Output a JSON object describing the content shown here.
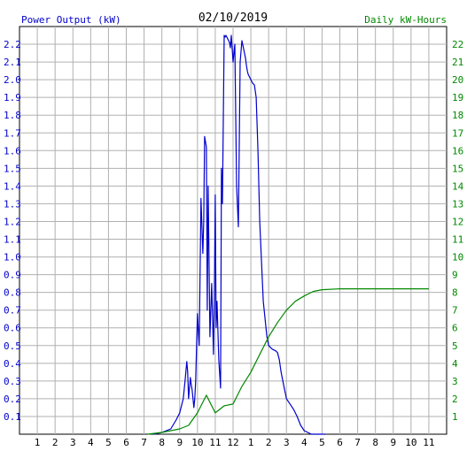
{
  "chart_data": {
    "type": "line",
    "title": "02/10/2019",
    "ylabel_left": "Power Output (kW)",
    "ylabel_right": "Daily kW-Hours",
    "colors": {
      "left_label": "#0000cc",
      "right_label": "#008800",
      "title": "#000000",
      "power_line": "#0000cc",
      "energy_line": "#008800",
      "grid": "#b0b0b0",
      "plot_bg": "#ffffff",
      "axis": "#000000"
    },
    "ylim_left": [
      0,
      2.3
    ],
    "ylim_right": [
      0,
      23
    ],
    "xlim": [
      0,
      24
    ],
    "y_ticks_left": [
      "0.1",
      "0.2",
      "0.3",
      "0.4",
      "0.5",
      "0.6",
      "0.7",
      "0.8",
      "0.9",
      "1.0",
      "1.1",
      "1.2",
      "1.3",
      "1.4",
      "1.5",
      "1.6",
      "1.7",
      "1.8",
      "1.9",
      "2.0",
      "2.1",
      "2.2"
    ],
    "y_ticks_right": [
      "1",
      "2",
      "3",
      "4",
      "5",
      "6",
      "7",
      "8",
      "9",
      "10",
      "11",
      "12",
      "13",
      "14",
      "15",
      "16",
      "17",
      "18",
      "19",
      "20",
      "21",
      "22"
    ],
    "x_ticks": [
      "1",
      "2",
      "3",
      "4",
      "5",
      "6",
      "7",
      "8",
      "9",
      "10",
      "11",
      "12",
      "1",
      "2",
      "3",
      "4",
      "5",
      "6",
      "7",
      "8",
      "9",
      "10",
      "11"
    ],
    "grid": true,
    "series": [
      {
        "id": "power",
        "x": [
          7.5,
          8.0,
          8.5,
          8.8,
          9.0,
          9.2,
          9.3,
          9.4,
          9.45,
          9.5,
          9.6,
          9.65,
          9.7,
          9.8,
          9.85,
          9.9,
          10.0,
          10.1,
          10.2,
          10.3,
          10.35,
          10.4,
          10.5,
          10.55,
          10.6,
          10.7,
          10.8,
          10.9,
          10.95,
          11.0,
          11.05,
          11.1,
          11.2,
          11.3,
          11.35,
          11.4,
          11.5,
          11.55,
          11.6,
          11.7,
          11.8,
          11.85,
          11.9,
          12.0,
          12.1,
          12.2,
          12.3,
          12.4,
          12.5,
          12.6,
          12.7,
          12.75,
          12.8,
          12.85,
          12.9,
          13.0,
          13.1,
          13.2,
          13.3,
          13.4,
          13.5,
          13.7,
          13.9,
          14.0,
          14.2,
          14.4,
          14.5,
          14.6,
          14.7,
          14.8,
          14.9,
          15.0,
          15.2,
          15.4,
          15.6,
          15.8,
          16.0,
          16.2,
          16.4,
          16.6,
          16.8,
          17.0,
          17.2
        ],
        "values": [
          0.0,
          0.01,
          0.03,
          0.08,
          0.12,
          0.2,
          0.3,
          0.41,
          0.35,
          0.2,
          0.32,
          0.28,
          0.25,
          0.15,
          0.2,
          0.3,
          0.68,
          0.5,
          1.33,
          1.02,
          1.2,
          1.68,
          1.62,
          0.7,
          1.4,
          0.55,
          0.85,
          0.45,
          0.78,
          1.35,
          0.6,
          0.75,
          0.42,
          0.26,
          1.5,
          1.3,
          2.25,
          2.24,
          2.25,
          2.23,
          2.21,
          2.18,
          2.25,
          2.1,
          2.2,
          1.4,
          1.17,
          2.1,
          2.22,
          2.17,
          2.12,
          2.08,
          2.05,
          2.03,
          2.02,
          2.0,
          1.98,
          1.97,
          1.9,
          1.6,
          1.2,
          0.75,
          0.55,
          0.5,
          0.48,
          0.47,
          0.46,
          0.42,
          0.35,
          0.3,
          0.25,
          0.2,
          0.17,
          0.14,
          0.1,
          0.05,
          0.02,
          0.01,
          0.0,
          0.0,
          0.0,
          0.0,
          0.0
        ]
      },
      {
        "id": "energy",
        "x": [
          7.2,
          8.0,
          9.0,
          9.5,
          10.0,
          10.5,
          11.0,
          11.5,
          12.0,
          12.5,
          13.0,
          13.5,
          14.0,
          14.5,
          15.0,
          15.5,
          16.0,
          16.5,
          17.0,
          18.0,
          20.0,
          22.0,
          23.0
        ],
        "values": [
          0.0,
          0.1,
          0.3,
          0.5,
          1.2,
          2.2,
          1.2,
          1.6,
          1.7,
          2.7,
          3.5,
          4.5,
          5.5,
          6.3,
          7.0,
          7.5,
          7.8,
          8.05,
          8.15,
          8.2,
          8.2,
          8.2,
          8.2
        ]
      }
    ]
  }
}
